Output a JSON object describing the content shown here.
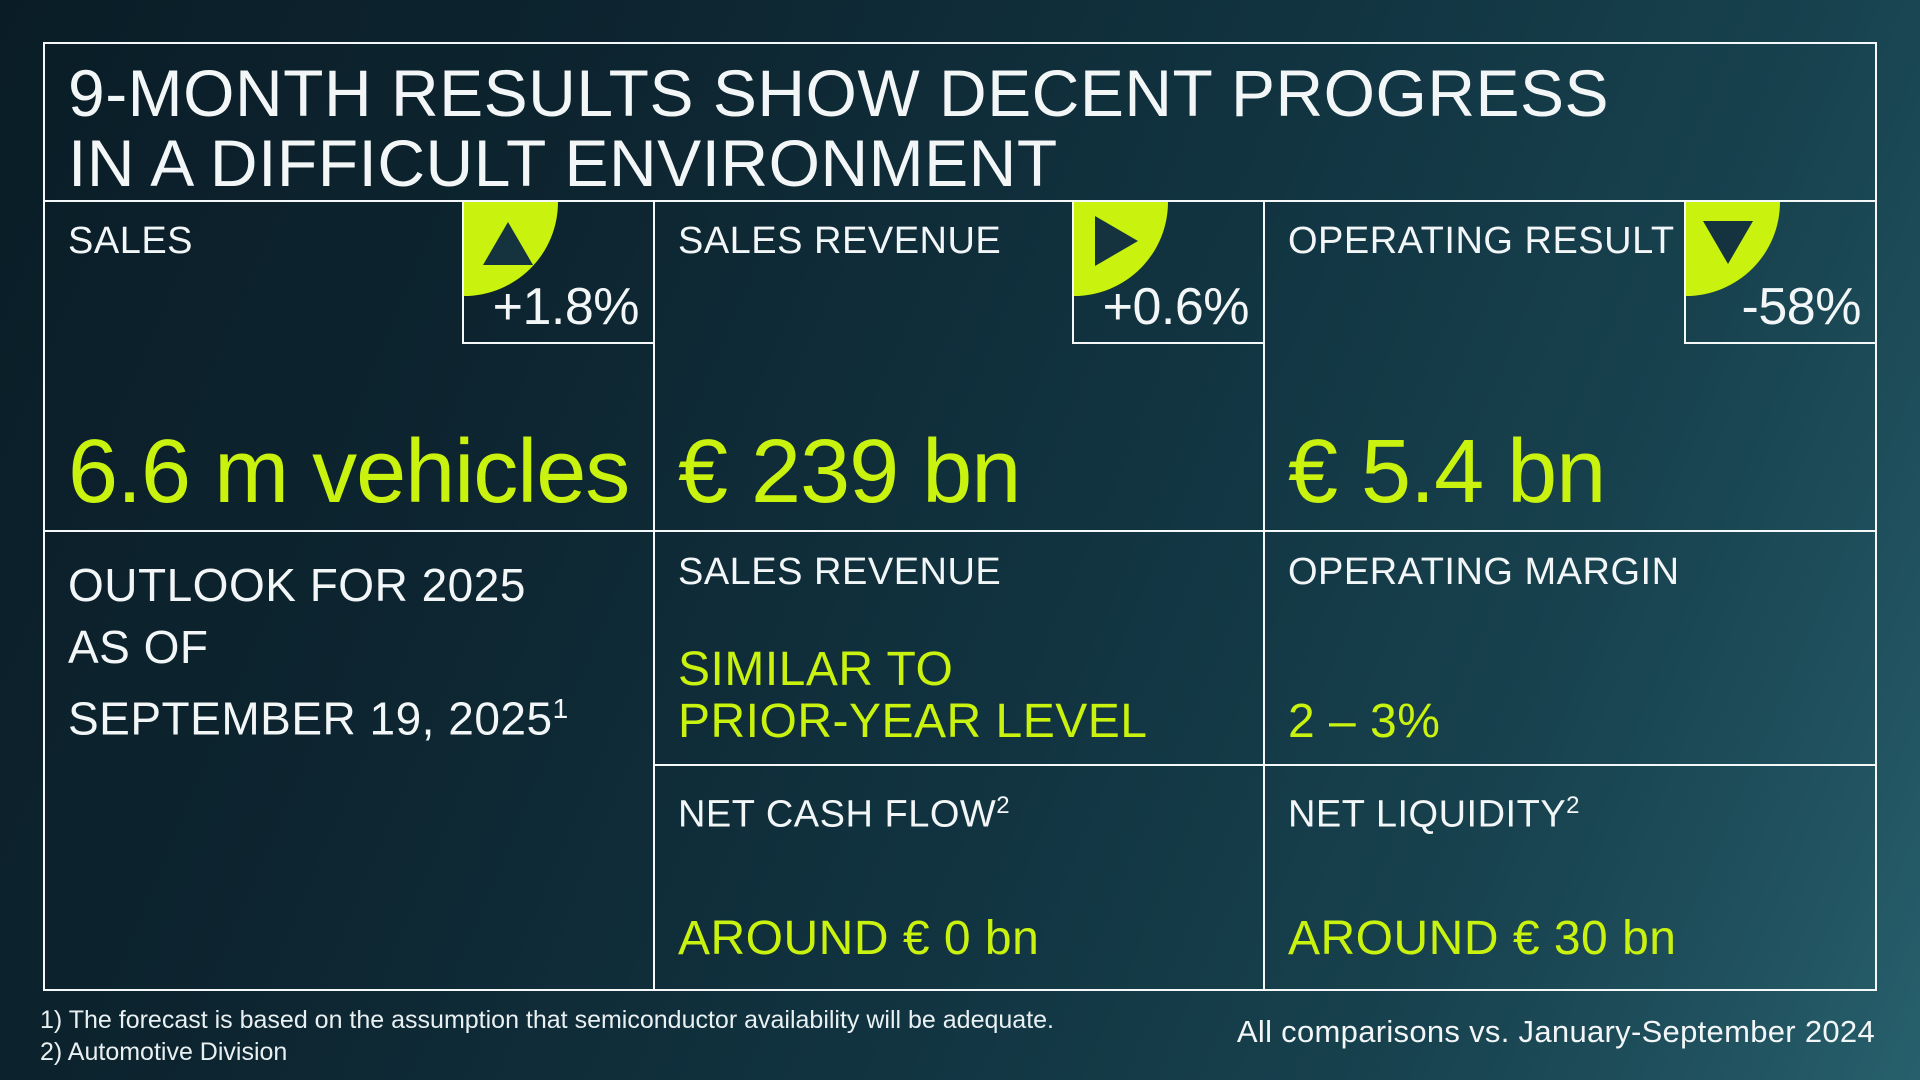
{
  "slide": {
    "title_line1": "9-MONTH RESULTS SHOW DECENT PROGRESS",
    "title_line2": "IN A DIFFICULT ENVIRONMENT",
    "kpis": [
      {
        "label": "SALES",
        "delta": "+1.8%",
        "direction": "up",
        "icon": "up-triangle-icon",
        "value": "6.6 m vehicles"
      },
      {
        "label": "SALES REVENUE",
        "delta": "+0.6%",
        "direction": "right",
        "icon": "right-triangle-icon",
        "value": "€ 239 bn"
      },
      {
        "label": "OPERATING RESULT",
        "delta": "-58%",
        "direction": "down",
        "icon": "down-triangle-icon",
        "value": "€ 5.4 bn"
      }
    ],
    "outlook": {
      "heading_line1": "OUTLOOK FOR 2025",
      "heading_line2": "AS OF",
      "heading_line3": "SEPTEMBER 19, 2025",
      "heading_superscript": "1",
      "cells": [
        {
          "label": "SALES REVENUE",
          "value_line1": "SIMILAR TO",
          "value_line2": "PRIOR-YEAR LEVEL"
        },
        {
          "label": "OPERATING MARGIN",
          "value_line1": "2 – 3%"
        },
        {
          "label": "NET CASH FLOW",
          "label_superscript": "2",
          "value_line1": "AROUND € 0 bn"
        },
        {
          "label": "NET LIQUIDITY",
          "label_superscript": "2",
          "value_line1": "AROUND € 30 bn"
        }
      ]
    },
    "footnotes": [
      "1) The forecast is based on the assumption that semiconductor availability will be adequate.",
      "2) Automotive Division"
    ],
    "comparison_note": "All comparisons vs. January-September 2024"
  },
  "colors": {
    "accent": "#c9f20e",
    "navy": "#14333f",
    "line": "#f4f8f8",
    "txt": "#f2f6f7"
  }
}
